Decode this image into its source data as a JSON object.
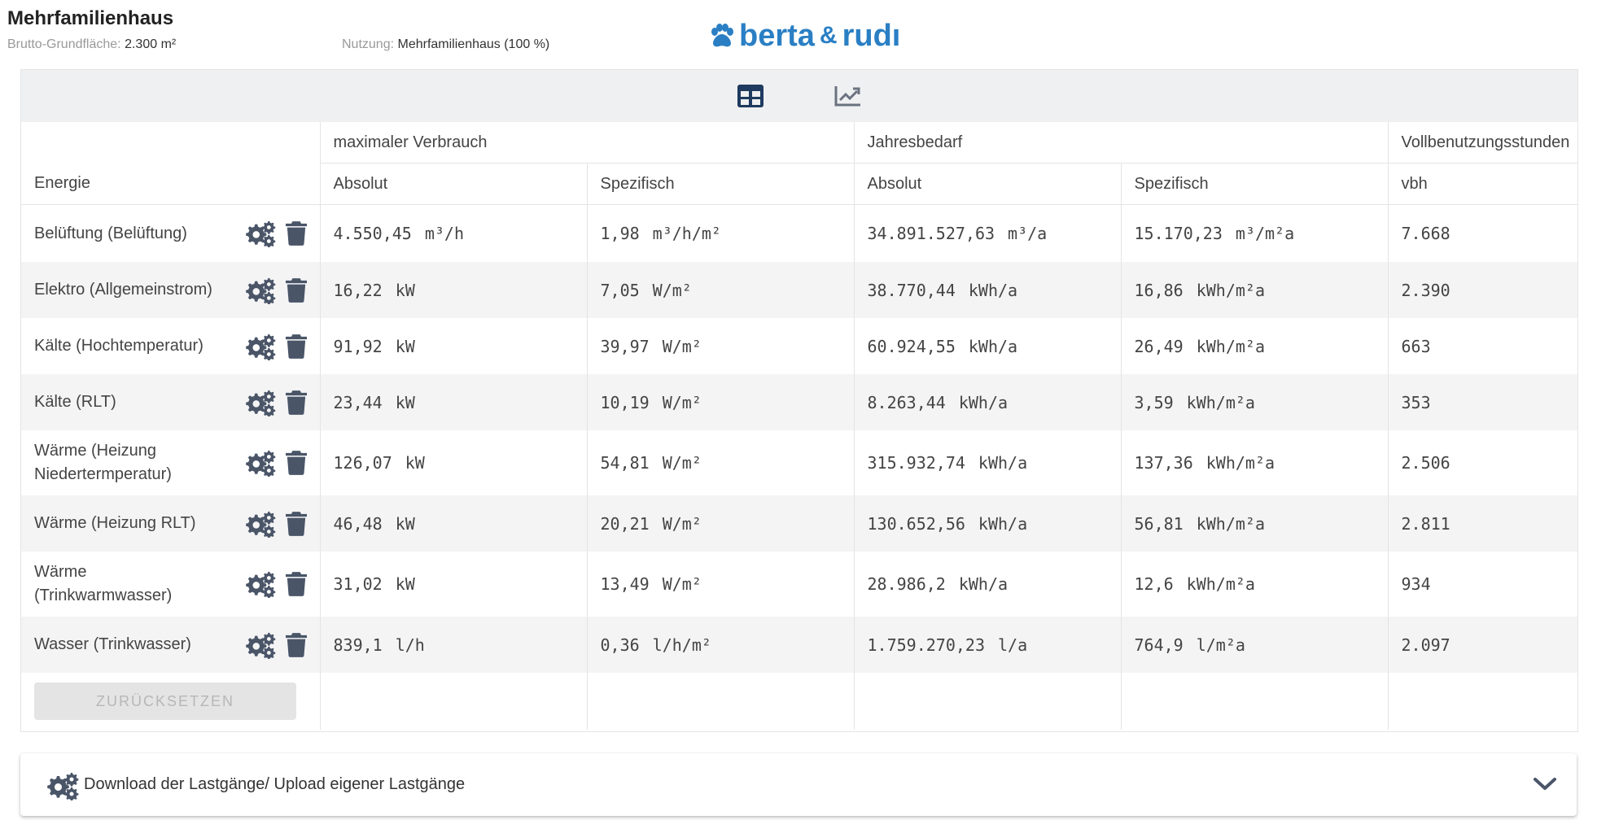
{
  "header": {
    "title": "Mehrfamilienhaus",
    "area_label": "Brutto-Grundfläche:",
    "area_value": "2.300 m²",
    "usage_label": "Nutzung:",
    "usage_value": "Mehrfamilienhaus (100 %)",
    "logo_text_1": "berta",
    "logo_amp": "&",
    "logo_text_2": "rudı"
  },
  "toolbar": {
    "table_view_icon": "table-icon",
    "chart_view_icon": "chart-line-icon"
  },
  "table": {
    "col_group_max": "maximaler Verbrauch",
    "col_group_year": "Jahresbedarf",
    "col_group_vbh": "Vollbenutzungsstunden",
    "col_energy": "Energie",
    "col_abs": "Absolut",
    "col_spec": "Spezifisch",
    "col_abs2": "Absolut",
    "col_spec2": "Spezifisch",
    "col_vbh": "vbh",
    "rows": [
      {
        "name": "Belüftung (Belüftung)",
        "max_abs": "4.550,45",
        "max_abs_u": "m³/h",
        "max_spec": "1,98",
        "max_spec_u": "m³/h/m²",
        "year_abs": "34.891.527,63",
        "year_abs_u": "m³/a",
        "year_spec": "15.170,23",
        "year_spec_u": "m³/m²a",
        "vbh": "7.668"
      },
      {
        "name": "Elektro (Allgemeinstrom)",
        "max_abs": "16,22",
        "max_abs_u": "kW",
        "max_spec": "7,05",
        "max_spec_u": "W/m²",
        "year_abs": "38.770,44",
        "year_abs_u": "kWh/a",
        "year_spec": "16,86",
        "year_spec_u": "kWh/m²a",
        "vbh": "2.390"
      },
      {
        "name": "Kälte (Hochtemperatur)",
        "max_abs": "91,92",
        "max_abs_u": "kW",
        "max_spec": "39,97",
        "max_spec_u": "W/m²",
        "year_abs": "60.924,55",
        "year_abs_u": "kWh/a",
        "year_spec": "26,49",
        "year_spec_u": "kWh/m²a",
        "vbh": "663"
      },
      {
        "name": "Kälte (RLT)",
        "max_abs": "23,44",
        "max_abs_u": "kW",
        "max_spec": "10,19",
        "max_spec_u": "W/m²",
        "year_abs": "8.263,44",
        "year_abs_u": "kWh/a",
        "year_spec": "3,59",
        "year_spec_u": "kWh/m²a",
        "vbh": "353"
      },
      {
        "name": "Wärme (Heizung Niedertermperatur)",
        "max_abs": "126,07",
        "max_abs_u": "kW",
        "max_spec": "54,81",
        "max_spec_u": "W/m²",
        "year_abs": "315.932,74",
        "year_abs_u": "kWh/a",
        "year_spec": "137,36",
        "year_spec_u": "kWh/m²a",
        "vbh": "2.506"
      },
      {
        "name": "Wärme (Heizung RLT)",
        "max_abs": "46,48",
        "max_abs_u": "kW",
        "max_spec": "20,21",
        "max_spec_u": "W/m²",
        "year_abs": "130.652,56",
        "year_abs_u": "kWh/a",
        "year_spec": "56,81",
        "year_spec_u": "kWh/m²a",
        "vbh": "2.811"
      },
      {
        "name": "Wärme (Trinkwarmwasser)",
        "max_abs": "31,02",
        "max_abs_u": "kW",
        "max_spec": "13,49",
        "max_spec_u": "W/m²",
        "year_abs": "28.986,2",
        "year_abs_u": "kWh/a",
        "year_spec": "12,6",
        "year_spec_u": "kWh/m²a",
        "vbh": "934"
      },
      {
        "name": "Wasser (Trinkwasser)",
        "max_abs": "839,1",
        "max_abs_u": "l/h",
        "max_spec": "0,36",
        "max_spec_u": "l/h/m²",
        "year_abs": "1.759.270,23",
        "year_abs_u": "l/a",
        "year_spec": "764,9",
        "year_spec_u": "l/m²a",
        "vbh": "2.097"
      }
    ]
  },
  "buttons": {
    "reset_label": "ZURÜCKSETZEN"
  },
  "accordion": {
    "label": "Download der Lastgänge/ Upload eigener Lastgänge",
    "icon": "gears-icon",
    "chevron_icon": "chevron-down-icon"
  },
  "colors": {
    "logo_blue": "#2a7fc4",
    "icon_dark": "#4a5568",
    "toolbar_active": "#1e3a5f",
    "row_alt": "#f4f4f5"
  }
}
